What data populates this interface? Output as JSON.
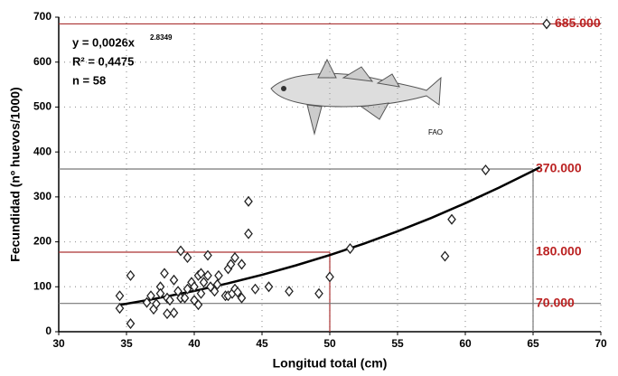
{
  "chart_data": {
    "type": "scatter",
    "x_label": "Longitud total (cm)",
    "y_label": "Fecundidad (nº huevos/1000)",
    "xlim": [
      30,
      70
    ],
    "xticks": [
      30,
      35,
      40,
      45,
      50,
      55,
      60,
      65,
      70
    ],
    "ylim": [
      0,
      700
    ],
    "yticks": [
      0,
      100,
      200,
      300,
      400,
      500,
      600,
      700
    ],
    "grid": true,
    "series": [
      {
        "color": "#222222",
        "x": [
          34.5,
          34.5,
          35.3,
          35.3,
          36.5,
          36.8,
          37,
          37.2,
          37.5,
          37.5,
          37.8,
          38,
          38,
          38.2,
          38.5,
          38.5,
          38.8,
          39,
          39,
          39.3,
          39.5,
          39.5,
          39.8,
          40,
          40,
          40.3,
          40.3,
          40.5,
          40.5,
          40.7,
          41,
          41,
          41.2,
          41.5,
          41.7,
          41.8,
          42.3,
          42.5,
          42.5,
          42.7,
          42.8,
          43,
          43,
          43.2,
          43.5,
          43.5,
          44,
          44,
          44.5,
          45.5,
          47,
          49.2,
          50,
          51.5,
          58.5,
          59,
          61.5,
          66
        ],
        "values": [
          80,
          52,
          125,
          18,
          65,
          80,
          50,
          62,
          100,
          85,
          130,
          40,
          75,
          70,
          115,
          42,
          90,
          180,
          75,
          75,
          165,
          95,
          110,
          70,
          100,
          60,
          125,
          130,
          85,
          110,
          170,
          125,
          100,
          90,
          105,
          125,
          80,
          80,
          140,
          150,
          85,
          165,
          95,
          88,
          150,
          75,
          290,
          218,
          95,
          100,
          90,
          85,
          122,
          185,
          168,
          250,
          360,
          685
        ]
      }
    ],
    "fit": {
      "color": "#000000",
      "x": [
        34.5,
        37,
        40,
        42.5,
        45,
        47.5,
        50,
        52.5,
        55,
        57.5,
        60,
        62.5,
        65,
        65.5
      ],
      "values": [
        59.6,
        72.8,
        90.7,
        107.7,
        126.6,
        147.6,
        170.6,
        195.8,
        223.4,
        253.3,
        286,
        320.9,
        358,
        366
      ]
    },
    "equation": "y = 0,0026x",
    "exponent": "2.8349",
    "r2": "R² = 0,4475",
    "n": "n = 58",
    "reference_lines": [
      {
        "y": 685,
        "label": "685.000"
      },
      {
        "y": 362,
        "x": 65,
        "label": "370.000"
      },
      {
        "y": 177,
        "x": 50,
        "label": "180.000"
      },
      {
        "y": 63,
        "label": "70.000"
      }
    ],
    "image_credit": "FAO"
  }
}
